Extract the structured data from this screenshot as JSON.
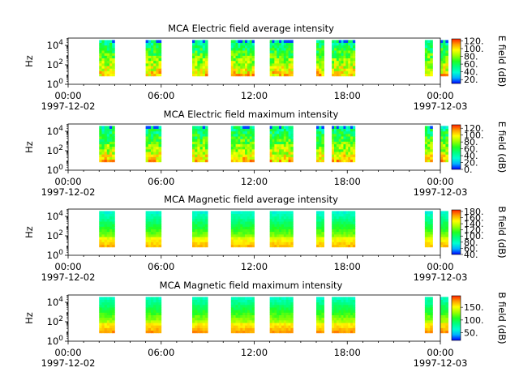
{
  "instrument": "MCA",
  "colors": {
    "colormap": [
      "#0000ff",
      "#00b0ff",
      "#00ffd0",
      "#00ff80",
      "#20ff20",
      "#9cff00",
      "#ffff00",
      "#ffa000",
      "#ff2000"
    ]
  },
  "chart_data": [
    {
      "type": "heatmap",
      "title": "MCA  Electric field average intensity",
      "ylabel": "Hz",
      "ylog": true,
      "yticks": [
        "10^0",
        "10^2",
        "10^4"
      ],
      "xticks": [
        "00:00",
        "06:00",
        "12:00",
        "18:00",
        "00:00"
      ],
      "xdates": [
        "1997-12-02",
        "",
        "",
        "",
        "1997-12-03"
      ],
      "colorbar_label": "E field (dB)",
      "colorbar_ticks": [
        "20.",
        "40.",
        "60.",
        "80.",
        "100.",
        "120."
      ],
      "clim": [
        10,
        125
      ],
      "intervals": [
        [
          "02:00",
          "03:00"
        ],
        [
          "05:00",
          "06:00"
        ],
        [
          "08:00",
          "09:00"
        ],
        [
          "10:30",
          "12:00"
        ],
        [
          "13:00",
          "14:30"
        ],
        [
          "16:00",
          "16:30"
        ],
        [
          "17:00",
          "18:30"
        ],
        [
          "23:00",
          "23:30"
        ],
        [
          "24:00",
          "24:30"
        ]
      ]
    },
    {
      "type": "heatmap",
      "title": "MCA  Electric field maximum intensity",
      "ylabel": "Hz",
      "ylog": true,
      "yticks": [
        "10^0",
        "10^2",
        "10^4"
      ],
      "xticks": [
        "00:00",
        "06:00",
        "12:00",
        "18:00",
        "00:00"
      ],
      "xdates": [
        "1997-12-02",
        "",
        "",
        "",
        "1997-12-03"
      ],
      "colorbar_label": "E field (dB)",
      "colorbar_ticks": [
        "0.",
        "20.",
        "40.",
        "60.",
        "80.",
        "100.",
        "120."
      ],
      "clim": [
        0,
        130
      ],
      "intervals": [
        [
          "02:00",
          "03:00"
        ],
        [
          "05:00",
          "06:00"
        ],
        [
          "08:00",
          "09:00"
        ],
        [
          "10:30",
          "12:00"
        ],
        [
          "13:00",
          "14:30"
        ],
        [
          "16:00",
          "16:30"
        ],
        [
          "17:00",
          "18:30"
        ],
        [
          "23:00",
          "23:30"
        ],
        [
          "24:00",
          "24:30"
        ]
      ]
    },
    {
      "type": "heatmap",
      "title": "MCA  Magnetic field average intensity",
      "ylabel": "Hz",
      "ylog": true,
      "yticks": [
        "10^0",
        "10^2",
        "10^4"
      ],
      "xticks": [
        "00:00",
        "06:00",
        "12:00",
        "18:00",
        "00:00"
      ],
      "xdates": [
        "1997-12-02",
        "",
        "",
        "",
        "1997-12-03"
      ],
      "colorbar_label": "B field (dB)",
      "colorbar_ticks": [
        "40.",
        "60.",
        "80.",
        "100.",
        "120.",
        "140.",
        "160.",
        "180."
      ],
      "clim": [
        40,
        185
      ],
      "intervals": [
        [
          "02:00",
          "03:00"
        ],
        [
          "05:00",
          "06:00"
        ],
        [
          "08:00",
          "09:00"
        ],
        [
          "10:30",
          "12:00"
        ],
        [
          "13:00",
          "14:30"
        ],
        [
          "16:00",
          "16:30"
        ],
        [
          "17:00",
          "18:30"
        ],
        [
          "23:00",
          "23:30"
        ],
        [
          "24:00",
          "24:30"
        ]
      ]
    },
    {
      "type": "heatmap",
      "title": "MCA  Magnetic field maximum intensity",
      "ylabel": "Hz",
      "ylog": true,
      "yticks": [
        "10^0",
        "10^2",
        "10^4"
      ],
      "xticks": [
        "00:00",
        "06:00",
        "12:00",
        "18:00",
        "00:00"
      ],
      "xdates": [
        "1997-12-02",
        "",
        "",
        "",
        "1997-12-03"
      ],
      "colorbar_label": "B field (dB)",
      "colorbar_ticks": [
        "50.",
        "100.",
        "150."
      ],
      "clim": [
        20,
        195
      ],
      "intervals": [
        [
          "02:00",
          "03:00"
        ],
        [
          "05:00",
          "06:00"
        ],
        [
          "08:00",
          "09:00"
        ],
        [
          "10:30",
          "12:00"
        ],
        [
          "13:00",
          "14:30"
        ],
        [
          "16:00",
          "16:30"
        ],
        [
          "17:00",
          "18:30"
        ],
        [
          "23:00",
          "23:30"
        ],
        [
          "24:00",
          "24:30"
        ]
      ]
    }
  ]
}
